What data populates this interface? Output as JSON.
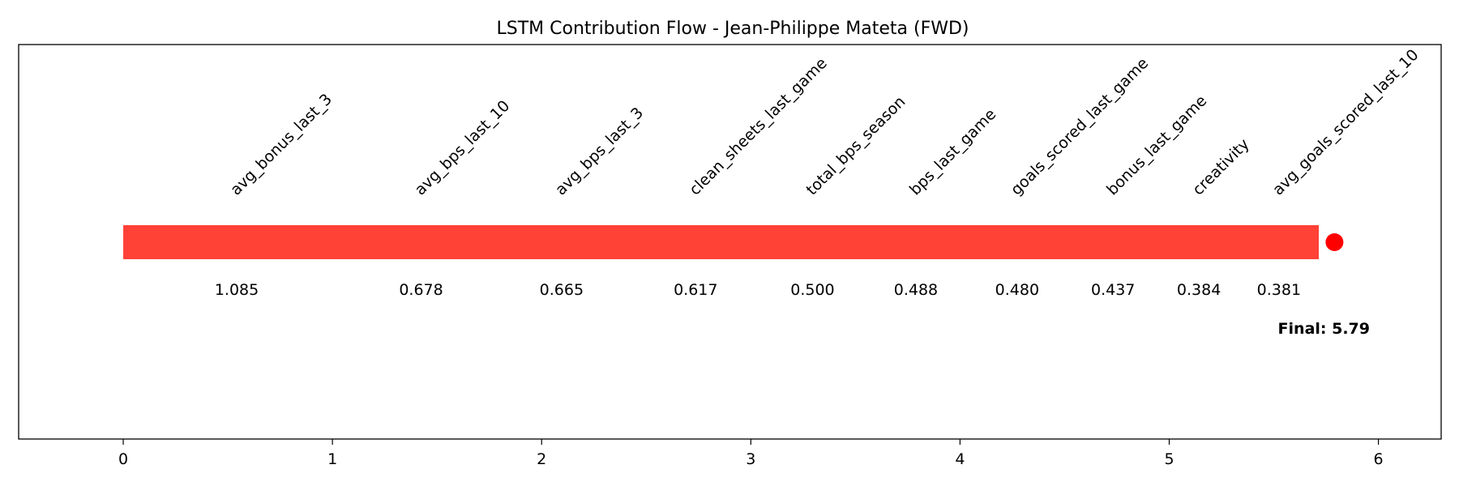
{
  "chart_data": {
    "type": "bar",
    "title": "LSTM Contribution Flow - Jean-Philippe Mateta (FWD)",
    "xlim": [
      -0.5,
      6.3
    ],
    "x_ticks": [
      0,
      1,
      2,
      3,
      4,
      5,
      6
    ],
    "grid": false,
    "bar_color": "#ff4136",
    "marker_color": "#ff0000",
    "contributions": [
      {
        "feature": "avg_bonus_last_3",
        "value": 1.085,
        "value_label": "1.085"
      },
      {
        "feature": "avg_bps_last_10",
        "value": 0.678,
        "value_label": "0.678"
      },
      {
        "feature": "avg_bps_last_3",
        "value": 0.665,
        "value_label": "0.665"
      },
      {
        "feature": "clean_sheets_last_game",
        "value": 0.617,
        "value_label": "0.617"
      },
      {
        "feature": "total_bps_season",
        "value": 0.5,
        "value_label": "0.500"
      },
      {
        "feature": "bps_last_game",
        "value": 0.488,
        "value_label": "0.488"
      },
      {
        "feature": "goals_scored_last_game",
        "value": 0.48,
        "value_label": "0.480"
      },
      {
        "feature": "bonus_last_game",
        "value": 0.437,
        "value_label": "0.437"
      },
      {
        "feature": "creativity",
        "value": 0.384,
        "value_label": "0.384"
      },
      {
        "feature": "avg_goals_scored_last_10",
        "value": 0.381,
        "value_label": "0.381"
      }
    ],
    "final_value": 5.79,
    "final_label": "Final: 5.79"
  }
}
